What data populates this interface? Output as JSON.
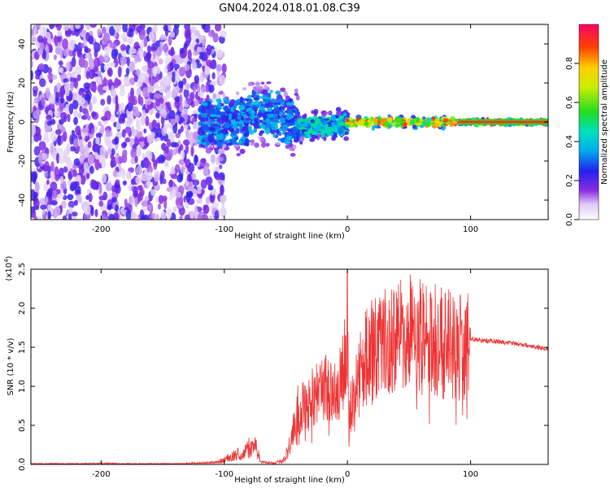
{
  "title": "GN04.2024.018.01.08.C39",
  "chart_data": [
    {
      "type": "heatmap",
      "xlabel": "Height of straight line (km)",
      "ylabel": "Frequency (Hz)",
      "xlim": [
        -257,
        163
      ],
      "ylim": [
        -50,
        50
      ],
      "xticks": [
        -200,
        -100,
        0,
        100
      ],
      "yticks": [
        -40,
        -20,
        0,
        20,
        40
      ],
      "colorbar": {
        "label": "Normalized spectral amplitude",
        "range": [
          0,
          1
        ],
        "ticks": [
          "0.0",
          "0.2",
          "0.4",
          "0.6",
          "0.8"
        ],
        "tick_values": [
          0,
          0.2,
          0.4,
          0.6,
          0.8
        ]
      },
      "description_points": [
        {
          "x_from": -257,
          "x_to": -120,
          "amp": 0.15,
          "spread_hz": 50
        },
        {
          "x_from": -120,
          "x_to": -40,
          "amp": 0.35,
          "spread_hz": 12
        },
        {
          "x_from": -40,
          "x_to": 0,
          "amp": 0.45,
          "spread_hz": 5
        },
        {
          "x_from": 0,
          "x_to": 90,
          "amp": 0.8,
          "spread_hz": 2
        },
        {
          "x_from": 90,
          "x_to": 163,
          "amp": 0.95,
          "spread_hz": 1
        }
      ]
    },
    {
      "type": "line",
      "xlabel": "Height of straight line (km)",
      "ylabel": "SNR (10 * v/v)",
      "exponent_label": "(x10",
      "exponent_power": "4",
      "exponent_close": ")",
      "xlim": [
        -257,
        163
      ],
      "ylim": [
        0,
        2.5
      ],
      "xticks": [
        -200,
        -100,
        0,
        100
      ],
      "yticks": [
        "0.0",
        "0.5",
        "1.0",
        "1.5",
        "2.0",
        "2.5"
      ],
      "ytick_values": [
        0,
        0.5,
        1.0,
        1.5,
        2.0,
        2.5
      ],
      "color": "#ee3333",
      "series": [
        {
          "name": "SNR",
          "x": [
            -257,
            -240,
            -220,
            -200,
            -180,
            -160,
            -140,
            -120,
            -105,
            -95,
            -88,
            -85,
            -82,
            -78,
            -75,
            -70,
            -60,
            -52,
            -48,
            -44,
            -41,
            -38,
            -35,
            -30,
            -25,
            -20,
            -15,
            -10,
            -5,
            -2,
            0,
            1,
            3,
            5,
            8,
            12,
            16,
            20,
            25,
            30,
            35,
            40,
            45,
            50,
            55,
            60,
            65,
            70,
            75,
            80,
            85,
            90,
            95,
            99,
            100,
            105,
            110,
            120,
            130,
            140,
            150,
            163
          ],
          "y": [
            0.01,
            0.01,
            0.01,
            0.015,
            0.01,
            0.01,
            0.01,
            0.02,
            0.03,
            0.1,
            0.15,
            0.12,
            0.25,
            0.2,
            0.28,
            0.03,
            0.02,
            0.05,
            0.2,
            0.5,
            0.75,
            0.7,
            0.8,
            0.85,
            0.95,
            1.0,
            1.05,
            1.0,
            1.1,
            1.4,
            2.3,
            0.5,
            0.8,
            0.95,
            1.15,
            1.3,
            1.45,
            1.5,
            1.55,
            1.6,
            1.65,
            1.72,
            1.75,
            1.78,
            1.72,
            1.7,
            1.68,
            1.66,
            1.64,
            1.62,
            1.6,
            1.58,
            1.58,
            1.56,
            1.62,
            1.6,
            1.59,
            1.58,
            1.56,
            1.54,
            1.52,
            1.48
          ]
        }
      ]
    }
  ]
}
